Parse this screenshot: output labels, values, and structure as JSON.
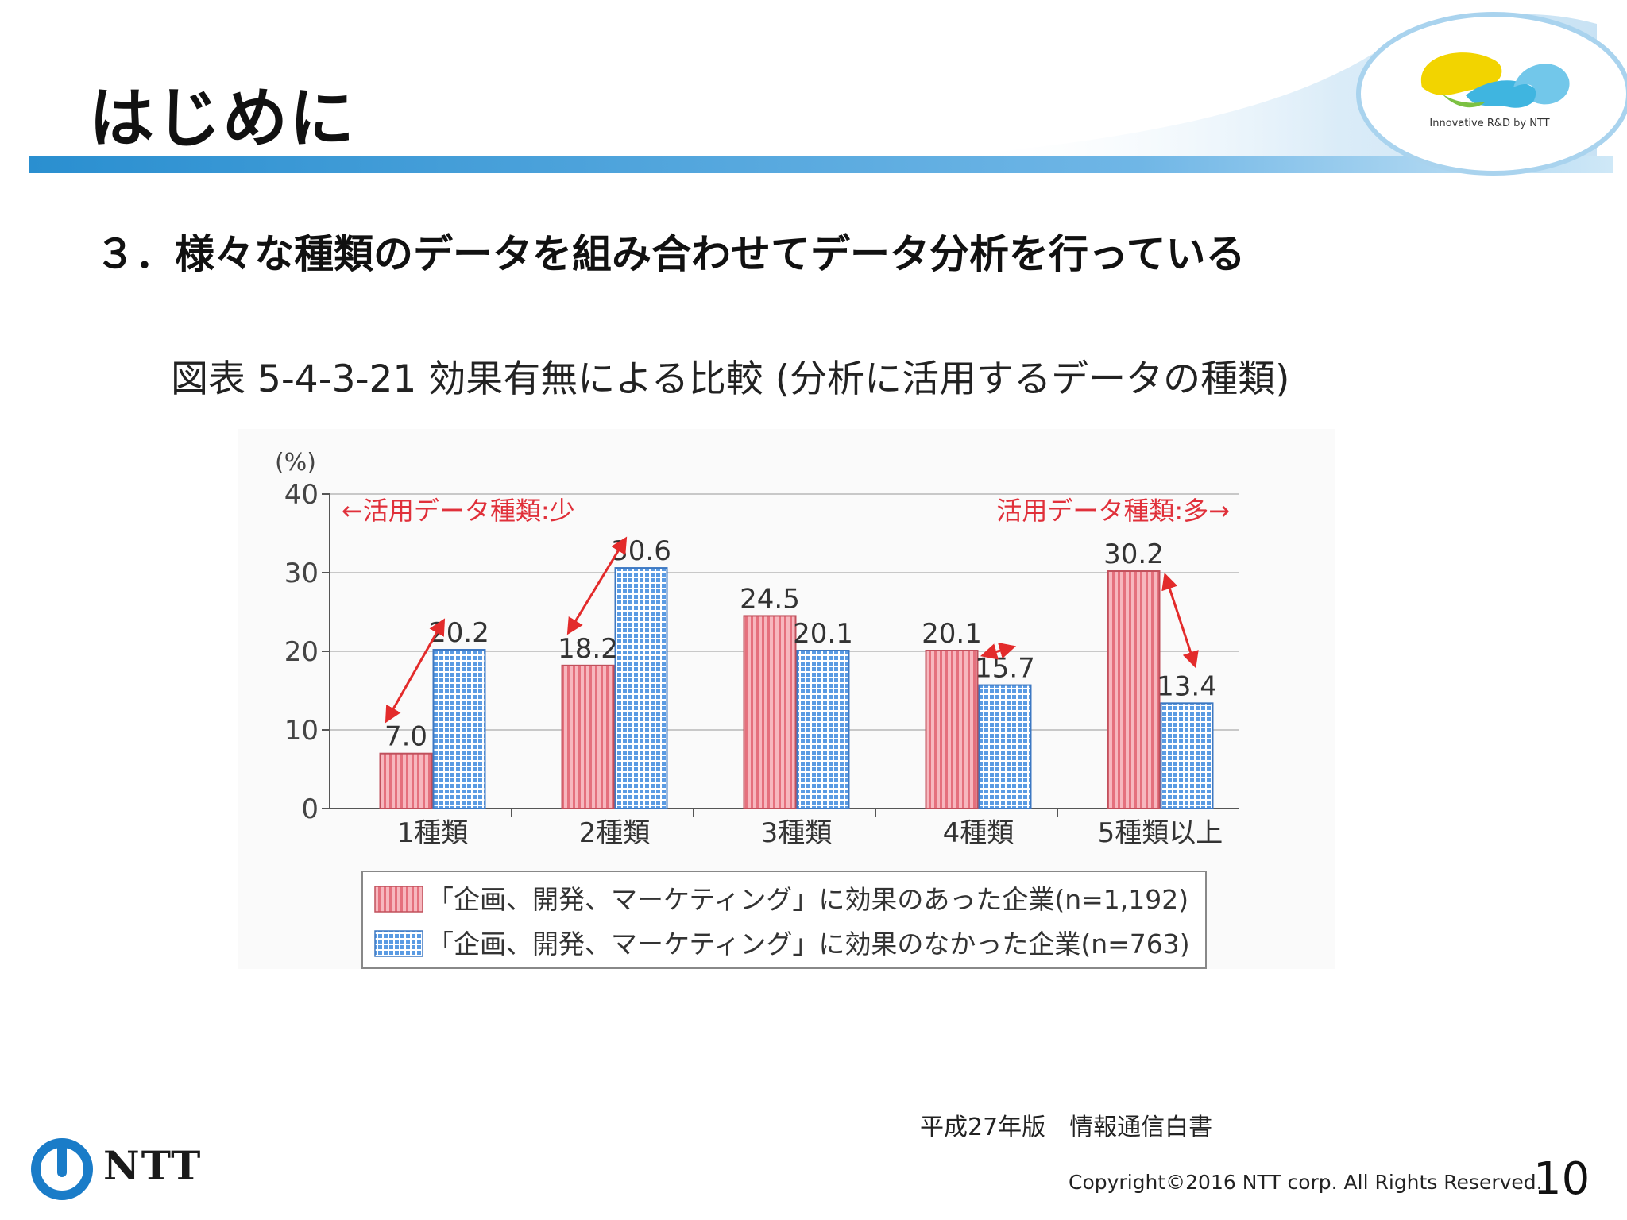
{
  "page": {
    "title": "はじめに",
    "section_heading": "３．様々な種類のデータを組み合わせてデータ分析を行っている",
    "figure_title": "図表 5-4-3-21 効果有無による比較 (分析に活用するデータの種類)",
    "source_note": "平成27年版　情報通信白書",
    "copyright": "Copyright©2016  NTT corp. All Rights Reserved.",
    "page_number": "10"
  },
  "logo": {
    "tagline": "Innovative R&D by NTT",
    "corporate_name": "NTT"
  },
  "colors": {
    "accent_blue": "#2a8fd0",
    "bar_effect_yes": "#f08c96",
    "bar_effect_no": "#7fb2ea",
    "arrow": "#e32b2b"
  },
  "chart_data": {
    "type": "bar",
    "ylabel": "(%)",
    "ylim": [
      0,
      40
    ],
    "yticks": [
      0,
      10,
      20,
      30,
      40
    ],
    "categories": [
      "1種類",
      "2種類",
      "3種類",
      "4種類",
      "5種類以上"
    ],
    "series": [
      {
        "name": "「企画、開発、マーケティング」に効果のあった企業(n=1,192)",
        "values": [
          7.0,
          18.2,
          24.5,
          20.1,
          30.2
        ]
      },
      {
        "name": "「企画、開発、マーケティング」に効果のなかった企業(n=763)",
        "values": [
          20.2,
          30.6,
          20.1,
          15.7,
          13.4
        ]
      }
    ],
    "value_labels": [
      [
        "7.0",
        "18.2",
        "24.5",
        "20.1",
        "30.2"
      ],
      [
        "20.2",
        "30.6",
        "20.1",
        "15.7",
        "13.4"
      ]
    ],
    "annotations": {
      "left": "←活用データ種類:少",
      "right": "活用データ種類:多→"
    },
    "legend_position": "bottom"
  }
}
